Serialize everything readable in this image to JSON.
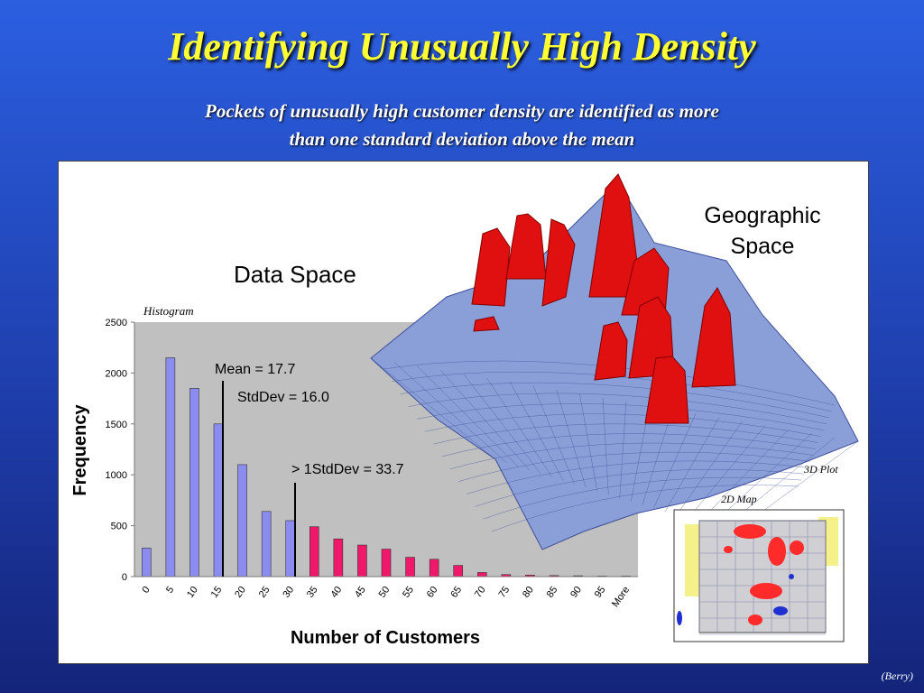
{
  "slide": {
    "title": "Identifying Unusually High Density",
    "subtitle_line1": "Pockets of unusually high customer density are identified as more",
    "subtitle_line2": "than one standard deviation above the mean",
    "credit": "(Berry)"
  },
  "labels": {
    "data_space": "Data Space",
    "geo_space_line1": "Geographic",
    "geo_space_line2": "Space",
    "histogram": "Histogram",
    "plot3d": "3D Plot",
    "map2d": "2D Map"
  },
  "annotations": {
    "mean": "Mean = 17.7",
    "stddev": "StdDev = 16.0",
    "threshold": "> 1StdDev = 33.7"
  },
  "colors": {
    "below_threshold": "#8c8cf0",
    "above_threshold": "#f0186a",
    "plot_area": "#c0c0c0",
    "peaks": "#e01010",
    "surface": "#8a9fd8"
  },
  "chart_data": {
    "type": "bar",
    "categories": [
      "0",
      "5",
      "10",
      "15",
      "20",
      "25",
      "30",
      "35",
      "40",
      "45",
      "50",
      "55",
      "60",
      "65",
      "70",
      "75",
      "80",
      "85",
      "90",
      "95",
      "More"
    ],
    "values": [
      280,
      2150,
      1850,
      1500,
      1100,
      640,
      550,
      490,
      370,
      310,
      270,
      190,
      170,
      110,
      40,
      20,
      15,
      10,
      8,
      5,
      5
    ],
    "above_threshold_from_index": 7,
    "xlabel": "Number of Customers",
    "ylabel": "Frequency",
    "ylim": [
      0,
      2500
    ],
    "yticks": [
      0,
      500,
      1000,
      1500,
      2000,
      2500
    ],
    "grid": false,
    "legend": "none"
  }
}
